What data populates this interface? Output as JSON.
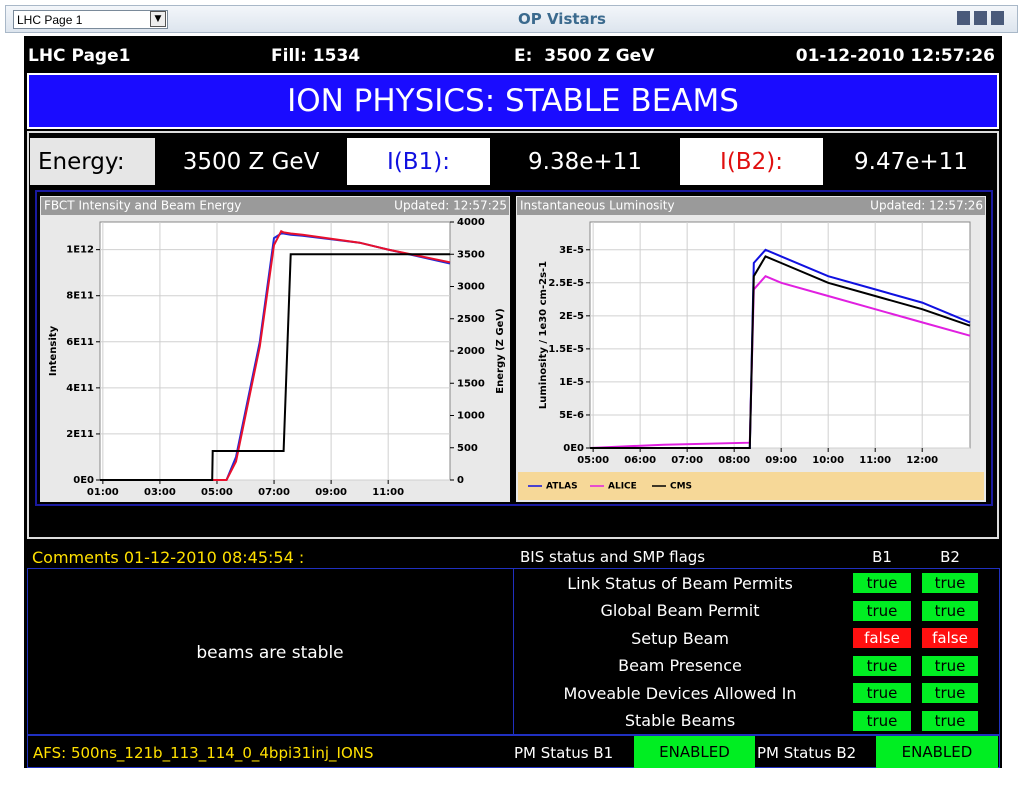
{
  "window": {
    "page_select": "LHC Page 1",
    "title": "OP Vistars"
  },
  "header": {
    "page": "LHC Page1",
    "fill": "Fill: 1534",
    "energy": "E:  3500 Z GeV",
    "timestamp": "01-12-2010 12:57:26"
  },
  "banner": "ION PHYSICS: STABLE BEAMS",
  "readings": {
    "energy_label": "Energy:",
    "energy": "3500 Z GeV",
    "b1_label": "I(B1):",
    "b1": "9.38e+11",
    "b2_label": "I(B2):",
    "b2": "9.47e+11"
  },
  "chart_data": [
    {
      "type": "line",
      "title": "FBCT Intensity and Beam Energy",
      "updated": "Updated: 12:57:25",
      "ylabel": "Intensity",
      "y2label": "Energy (Z GeV)",
      "x": [
        "00:54",
        "04:50",
        "04:51",
        "05:20",
        "05:40",
        "06:00",
        "06:30",
        "07:00",
        "07:15",
        "07:20",
        "07:35",
        "08:00",
        "10:00",
        "11:00",
        "13:10"
      ],
      "series": [
        {
          "color": "#1f2bd8",
          "values": [
            0,
            0,
            0,
            0,
            100000000000.0,
            300000000000.0,
            600000000000.0,
            1050000000000.0,
            1070000000000.0,
            1070000000000.0,
            1065000000000.0,
            1060000000000.0,
            1030000000000.0,
            1000000000000.0,
            940000000000.0
          ]
        },
        {
          "color": "#e8102c",
          "values": [
            0,
            0,
            0,
            0,
            80000000000.0,
            280000000000.0,
            580000000000.0,
            1020000000000.0,
            1080000000000.0,
            1075000000000.0,
            1070000000000.0,
            1065000000000.0,
            1030000000000.0,
            1000000000000.0,
            945000000000.0
          ]
        },
        {
          "color": "#000000",
          "axis": "y2",
          "values": [
            0,
            0,
            450,
            450,
            450,
            450,
            450,
            450,
            450,
            450,
            3500,
            3500,
            3500,
            3500,
            3500
          ]
        }
      ],
      "xlim": [
        "00:54",
        "13:10"
      ],
      "xticks": [
        "01:00",
        "03:00",
        "05:00",
        "07:00",
        "09:00",
        "11:00"
      ],
      "ylim": [
        0,
        1120000000000.0
      ],
      "yticks": [
        {
          "value": 0,
          "label": "0E0"
        },
        {
          "value": 200000000000.0,
          "label": "2E11"
        },
        {
          "value": 400000000000.0,
          "label": "4E11"
        },
        {
          "value": 600000000000.0,
          "label": "6E11"
        },
        {
          "value": 800000000000.0,
          "label": "8E11"
        },
        {
          "value": 1000000000000.0,
          "label": "1E12"
        }
      ],
      "y2lim": [
        0,
        4000
      ],
      "y2ticks": [
        0,
        500,
        1000,
        1500,
        2000,
        2500,
        3000,
        3500,
        4000
      ],
      "grid": true
    },
    {
      "type": "line",
      "title": "Instantaneous Luminosity",
      "updated": "Updated: 12:57:26",
      "ylabel": "Luminosity / 1e30 cm-2s-1",
      "x": [
        "04:56",
        "06:30",
        "08:20",
        "08:25",
        "08:40",
        "09:00",
        "10:00",
        "11:00",
        "12:00",
        "13:01"
      ],
      "series": [
        {
          "name": "ATLAS",
          "color": "#1010e0",
          "values": [
            0,
            0,
            0,
            2.8e-05,
            3e-05,
            2.9e-05,
            2.6e-05,
            2.4e-05,
            2.2e-05,
            1.9e-05
          ]
        },
        {
          "name": "ALICE",
          "color": "#e020e0",
          "values": [
            0,
            5e-07,
            8e-07,
            2.4e-05,
            2.6e-05,
            2.5e-05,
            2.3e-05,
            2.1e-05,
            1.9e-05,
            1.7e-05
          ]
        },
        {
          "name": "CMS",
          "color": "#000000",
          "values": [
            0,
            0,
            0,
            2.6e-05,
            2.9e-05,
            2.8e-05,
            2.5e-05,
            2.3e-05,
            2.1e-05,
            1.85e-05
          ]
        }
      ],
      "xlim": [
        "04:56",
        "13:01"
      ],
      "xticks": [
        "05:00",
        "06:00",
        "07:00",
        "08:00",
        "09:00",
        "10:00",
        "11:00",
        "12:00"
      ],
      "ylim": [
        0,
        3.42e-05
      ],
      "yticks": [
        {
          "value": 0,
          "label": "0E0"
        },
        {
          "value": 5e-06,
          "label": "5E-6"
        },
        {
          "value": 1e-05,
          "label": "1E-5"
        },
        {
          "value": 1.5e-05,
          "label": "1.5E-5"
        },
        {
          "value": 2e-05,
          "label": "2E-5"
        },
        {
          "value": 2.5e-05,
          "label": "2.5E-5"
        },
        {
          "value": 3e-05,
          "label": "3E-5"
        }
      ],
      "grid": true,
      "legend": "bottom"
    }
  ],
  "comments": {
    "title": "Comments 01-12-2010 08:45:54 :",
    "text": "beams are stable"
  },
  "bis": {
    "title": "BIS status and SMP flags",
    "columns": [
      "B1",
      "B2"
    ],
    "rows": [
      {
        "name": "Link Status of Beam Permits",
        "b1": "true",
        "b2": "true"
      },
      {
        "name": "Global Beam Permit",
        "b1": "true",
        "b2": "true"
      },
      {
        "name": "Setup Beam",
        "b1": "false",
        "b2": "false"
      },
      {
        "name": "Beam Presence",
        "b1": "true",
        "b2": "true"
      },
      {
        "name": "Moveable Devices Allowed In",
        "b1": "true",
        "b2": "true"
      },
      {
        "name": "Stable Beams",
        "b1": "true",
        "b2": "true"
      }
    ]
  },
  "footer": {
    "afs": "AFS: 500ns_121b_113_114_0_4bpi31inj_IONS",
    "pm_b1_label": "PM Status B1",
    "pm_b1": "ENABLED",
    "pm_b2_label": "PM Status B2",
    "pm_b2": "ENABLED"
  }
}
